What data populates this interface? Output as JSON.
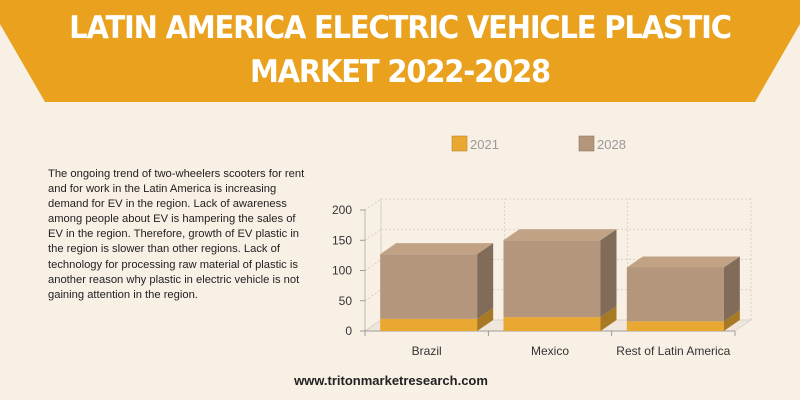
{
  "header": {
    "title_line1": "LATIN AMERICA ELECTRIC VEHICLE PLASTIC",
    "title_line2": "MARKET 2022-2028"
  },
  "description": "The ongoing trend of two-wheelers scooters for rent and for work in the Latin America is increasing demand for EV in the region. Lack of awareness among people about EV is hampering the sales of EV in the region. Therefore, growth of EV plastic in the region is slower than other regions. Lack of technology for processing raw material of plastic is another reason why plastic in electric vehicle is not gaining attention in the region.",
  "footer": {
    "website": "www.tritonmarketresearch.com"
  },
  "colors": {
    "banner": "#e9a11e",
    "series_2021": "#e8a832",
    "series_2028": "#b3967b"
  },
  "chart_data": {
    "type": "bar",
    "stacked": true,
    "three_d": true,
    "categories": [
      "Brazil",
      "Mexico",
      "Rest of Latin America"
    ],
    "series": [
      {
        "name": "2021",
        "values": [
          20,
          23,
          16
        ]
      },
      {
        "name": "2028",
        "values": [
          107,
          127,
          89
        ]
      }
    ],
    "yticks": [
      0,
      50,
      100,
      150,
      200
    ],
    "ylim": [
      0,
      200
    ],
    "grid": true,
    "legend": "top"
  }
}
